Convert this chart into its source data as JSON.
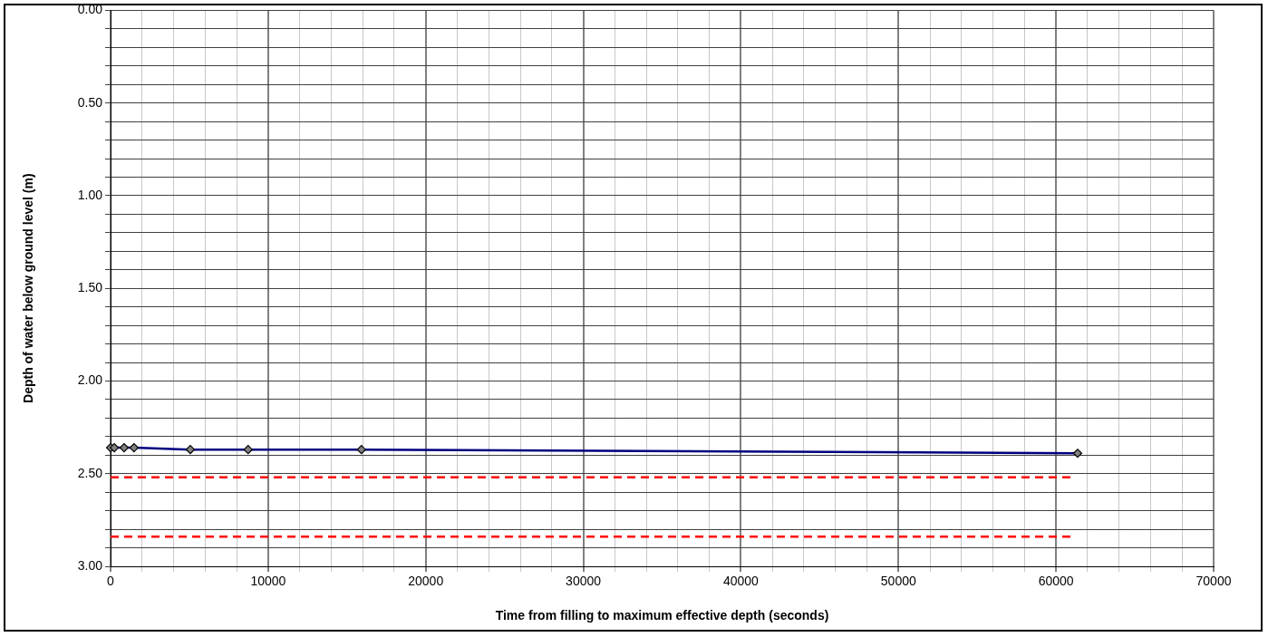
{
  "chart_data": {
    "type": "line",
    "xlabel": "Time from filling to maximum effective depth (seconds)",
    "ylabel": "Depth of water below ground level (m)",
    "series": [
      {
        "color": "#000080",
        "x": [
          0,
          234,
          859,
          1484,
          5059,
          8730,
          15920,
          61370
        ],
        "values": [
          2.36,
          2.36,
          2.36,
          2.36,
          2.37,
          2.37,
          2.37,
          2.39
        ],
        "marker": "diamond",
        "line_style": "solid"
      },
      {
        "color": "#ff0000",
        "x": [
          0,
          61000
        ],
        "values": [
          2.52,
          2.52
        ],
        "marker": "none",
        "line_style": "dashed"
      },
      {
        "color": "#ff0000",
        "x": [
          0,
          61000
        ],
        "values": [
          2.84,
          2.84
        ],
        "marker": "none",
        "line_style": "dashed"
      }
    ],
    "xlim": [
      0,
      70000
    ],
    "xticks": [
      0,
      {
        "value": 2000,
        "label": null
      },
      {
        "value": 4000,
        "label": null
      },
      {
        "value": 6000,
        "label": null
      },
      {
        "value": 8000,
        "label": null
      },
      10000,
      {
        "value": 12000,
        "label": null
      },
      {
        "value": 14000,
        "label": null
      },
      {
        "value": 16000,
        "label": null
      },
      {
        "value": 18000,
        "label": null
      },
      20000,
      {
        "value": 22000,
        "label": null
      },
      {
        "value": 24000,
        "label": null
      },
      {
        "value": 26000,
        "label": null
      },
      {
        "value": 28000,
        "label": null
      },
      30000,
      {
        "value": 32000,
        "label": null
      },
      {
        "value": 34000,
        "label": null
      },
      {
        "value": 36000,
        "label": null
      },
      {
        "value": 38000,
        "label": null
      },
      40000,
      {
        "value": 42000,
        "label": null
      },
      {
        "value": 44000,
        "label": null
      },
      {
        "value": 46000,
        "label": null
      },
      {
        "value": 48000,
        "label": null
      },
      50000,
      {
        "value": 52000,
        "label": null
      },
      {
        "value": 54000,
        "label": null
      },
      {
        "value": 56000,
        "label": null
      },
      {
        "value": 58000,
        "label": null
      },
      60000,
      {
        "value": 62000,
        "label": null
      },
      {
        "value": 64000,
        "label": null
      },
      {
        "value": 66000,
        "label": null
      },
      {
        "value": 68000,
        "label": null
      },
      70000
    ],
    "ylim": [
      3,
      0
    ],
    "yticks": [
      {
        "value": 0,
        "label": "0.00"
      },
      {
        "value": 0.1,
        "label": null
      },
      {
        "value": 0.2,
        "label": null
      },
      {
        "value": 0.3,
        "label": null
      },
      {
        "value": 0.4,
        "label": null
      },
      {
        "value": 0.5,
        "label": "0.50"
      },
      {
        "value": 0.6,
        "label": null
      },
      {
        "value": 0.7,
        "label": null
      },
      {
        "value": 0.8,
        "label": null
      },
      {
        "value": 0.9,
        "label": null
      },
      {
        "value": 1,
        "label": "1.00"
      },
      {
        "value": 1.1,
        "label": null
      },
      {
        "value": 1.2,
        "label": null
      },
      {
        "value": 1.3,
        "label": null
      },
      {
        "value": 1.4,
        "label": null
      },
      {
        "value": 1.5,
        "label": "1.50"
      },
      {
        "value": 1.6,
        "label": null
      },
      {
        "value": 1.7,
        "label": null
      },
      {
        "value": 1.8,
        "label": null
      },
      {
        "value": 1.9,
        "label": null
      },
      {
        "value": 2,
        "label": "2.00"
      },
      {
        "value": 2.1,
        "label": null
      },
      {
        "value": 2.2,
        "label": null
      },
      {
        "value": 2.3,
        "label": null
      },
      {
        "value": 2.4,
        "label": null
      },
      {
        "value": 2.5,
        "label": "2.50"
      },
      {
        "value": 2.6,
        "label": null
      },
      {
        "value": 2.7,
        "label": null
      },
      {
        "value": 2.8,
        "label": null
      },
      {
        "value": 2.9,
        "label": null
      },
      {
        "value": 3,
        "label": "3.00"
      }
    ],
    "grid": true,
    "legend": false
  }
}
